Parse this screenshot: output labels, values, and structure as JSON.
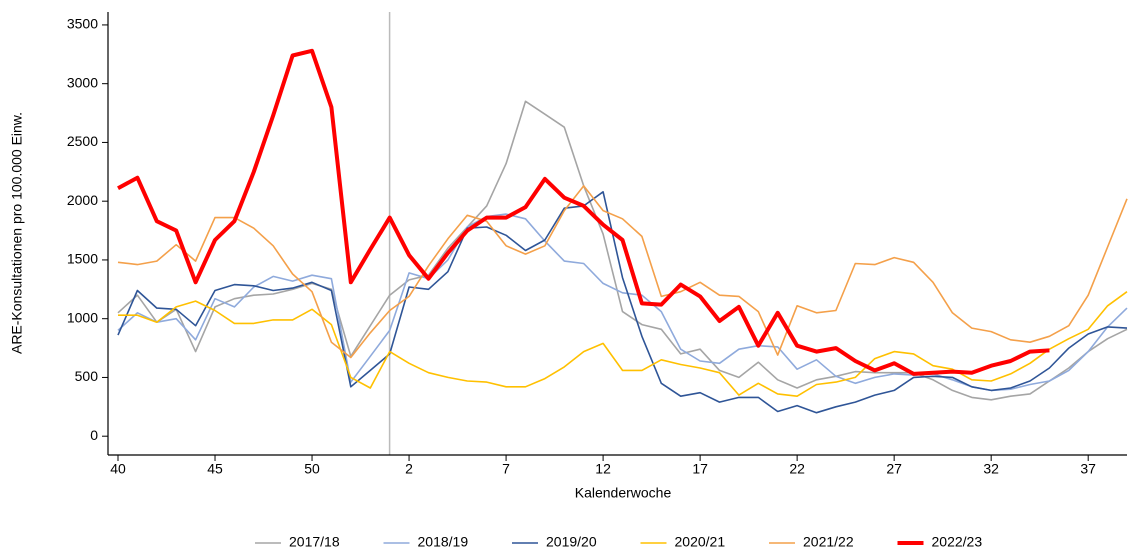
{
  "chart_data": {
    "type": "line",
    "y_label": "ARE-Konsultationen pro 100.000 Einw.",
    "x_label": "Kalenderwoche",
    "categories": [
      "40",
      null,
      null,
      null,
      null,
      "45",
      null,
      null,
      null,
      null,
      "50",
      null,
      null,
      null,
      null,
      "2",
      null,
      null,
      null,
      null,
      "7",
      null,
      null,
      null,
      null,
      "12",
      null,
      null,
      null,
      null,
      "17",
      null,
      null,
      null,
      null,
      "22",
      null,
      null,
      null,
      null,
      "27",
      null,
      null,
      null,
      null,
      "32",
      null,
      null,
      null,
      null,
      "37",
      null,
      null
    ],
    "ylim": [
      -160,
      3610
    ],
    "yticks": [
      0,
      500,
      1000,
      1500,
      2000,
      2500,
      3000,
      3500
    ],
    "series": [
      {
        "name": "2017/18",
        "color": "#a5a5a5",
        "width": 1.6,
        "values": [
          1050,
          1200,
          970,
          1080,
          720,
          1100,
          1170,
          1200,
          1210,
          1250,
          1300,
          1250,
          680,
          940,
          1200,
          1330,
          1370,
          1600,
          1780,
          1960,
          2320,
          2850,
          2740,
          2630,
          2130,
          1720,
          1060,
          950,
          910,
          700,
          740,
          560,
          500,
          630,
          480,
          410,
          480,
          510,
          550,
          540,
          540,
          540,
          480,
          390,
          330,
          310,
          340,
          360,
          470,
          580,
          720,
          830,
          910
        ]
      },
      {
        "name": "2018/19",
        "color": "#8faadc",
        "width": 1.6,
        "values": [
          900,
          1050,
          970,
          1000,
          820,
          1170,
          1100,
          1270,
          1360,
          1320,
          1370,
          1340,
          460,
          680,
          900,
          1390,
          1340,
          1500,
          1780,
          1870,
          1890,
          1850,
          1660,
          1490,
          1470,
          1300,
          1220,
          1200,
          1060,
          740,
          640,
          620,
          740,
          770,
          760,
          570,
          650,
          510,
          450,
          500,
          530,
          520,
          530,
          480,
          420,
          390,
          400,
          440,
          470,
          560,
          720,
          930,
          1090
        ]
      },
      {
        "name": "2019/20",
        "color": "#2f5597",
        "width": 1.6,
        "values": [
          860,
          1240,
          1090,
          1080,
          940,
          1240,
          1290,
          1280,
          1240,
          1260,
          1310,
          1240,
          420,
          560,
          700,
          1270,
          1250,
          1400,
          1770,
          1780,
          1710,
          1580,
          1670,
          1940,
          1960,
          2080,
          1350,
          850,
          450,
          340,
          370,
          290,
          330,
          330,
          210,
          260,
          200,
          250,
          290,
          350,
          390,
          500,
          510,
          500,
          420,
          390,
          410,
          470,
          580,
          750,
          870,
          930,
          920
        ]
      },
      {
        "name": "2020/21",
        "color": "#ffc000",
        "width": 1.6,
        "values": [
          1030,
          1030,
          970,
          1100,
          1150,
          1070,
          960,
          960,
          990,
          990,
          1080,
          950,
          500,
          410,
          720,
          620,
          540,
          500,
          470,
          460,
          420,
          420,
          490,
          590,
          720,
          790,
          560,
          560,
          650,
          610,
          580,
          540,
          350,
          450,
          360,
          340,
          440,
          460,
          500,
          660,
          720,
          700,
          600,
          570,
          480,
          470,
          530,
          620,
          740,
          830,
          910,
          1110,
          1230
        ]
      },
      {
        "name": "2021/22",
        "color": "#f4a04a",
        "width": 1.6,
        "values": [
          1480,
          1460,
          1490,
          1630,
          1490,
          1860,
          1860,
          1770,
          1620,
          1380,
          1230,
          800,
          670,
          880,
          1070,
          1190,
          1450,
          1680,
          1880,
          1830,
          1620,
          1550,
          1620,
          1920,
          2130,
          1920,
          1850,
          1700,
          1190,
          1230,
          1310,
          1200,
          1190,
          1060,
          690,
          1110,
          1050,
          1070,
          1470,
          1460,
          1520,
          1480,
          1310,
          1050,
          920,
          890,
          820,
          800,
          850,
          940,
          1200,
          1610,
          2020
        ]
      },
      {
        "name": "2022/23",
        "color": "#ff0000",
        "width": 4,
        "values": [
          2110,
          2200,
          1830,
          1750,
          1310,
          1670,
          1830,
          2250,
          2730,
          3240,
          3280,
          2800,
          1310,
          1590,
          1860,
          1540,
          1340,
          1560,
          1750,
          1860,
          1860,
          1950,
          2190,
          2030,
          1960,
          1800,
          1670,
          1130,
          1120,
          1290,
          1190,
          980,
          1100,
          770,
          1050,
          770,
          720,
          750,
          640,
          560,
          620,
          530,
          540,
          550,
          540,
          600,
          640,
          720,
          730,
          null,
          null,
          null,
          null
        ]
      }
    ]
  }
}
